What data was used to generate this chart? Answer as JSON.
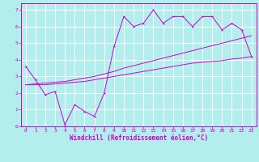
{
  "xlabel": "Windchill (Refroidissement éolien,°C)",
  "bg_color": "#b2eeee",
  "grid_color": "#ffffff",
  "line_color": "#cc00cc",
  "xlim": [
    -0.5,
    23.5
  ],
  "ylim": [
    0,
    7.4
  ],
  "xticks": [
    0,
    1,
    2,
    3,
    4,
    5,
    6,
    7,
    8,
    9,
    10,
    11,
    12,
    13,
    14,
    15,
    16,
    17,
    18,
    19,
    20,
    21,
    22,
    23
  ],
  "yticks": [
    0,
    1,
    2,
    3,
    4,
    5,
    6,
    7
  ],
  "x_data": [
    0,
    1,
    2,
    3,
    4,
    5,
    6,
    7,
    8,
    9,
    10,
    11,
    12,
    13,
    14,
    15,
    16,
    17,
    18,
    19,
    20,
    21,
    22,
    23
  ],
  "line1_y": [
    3.6,
    2.8,
    1.9,
    2.1,
    0.1,
    1.3,
    0.9,
    0.6,
    2.0,
    4.8,
    6.6,
    6.0,
    6.2,
    7.0,
    6.2,
    6.6,
    6.6,
    6.0,
    6.6,
    6.6,
    5.8,
    6.2,
    5.8,
    4.2
  ],
  "line2_y": [
    2.5,
    2.55,
    2.6,
    2.65,
    2.7,
    2.8,
    2.9,
    3.0,
    3.15,
    3.3,
    3.5,
    3.65,
    3.8,
    3.95,
    4.1,
    4.25,
    4.4,
    4.55,
    4.7,
    4.85,
    5.0,
    5.15,
    5.3,
    5.45
  ],
  "line3_y": [
    2.5,
    2.5,
    2.5,
    2.55,
    2.6,
    2.65,
    2.7,
    2.8,
    2.9,
    3.0,
    3.1,
    3.2,
    3.3,
    3.4,
    3.5,
    3.6,
    3.7,
    3.8,
    3.85,
    3.9,
    3.95,
    4.05,
    4.1,
    4.2
  ],
  "font_size_tick": 4.5,
  "font_size_label": 5.5,
  "font_family": "monospace"
}
